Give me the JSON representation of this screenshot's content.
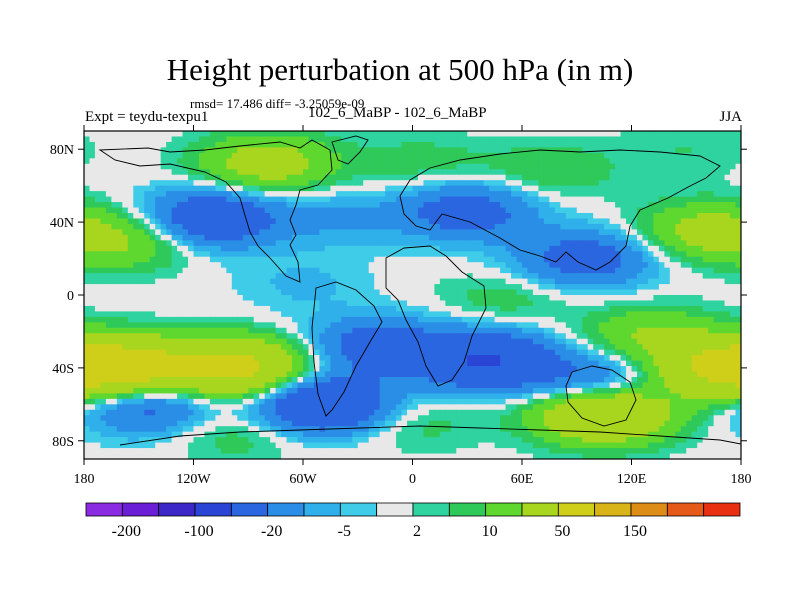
{
  "header": {
    "title": "Height perturbation at 500 hPa (in m)",
    "stats": "rmsd= 17.486  diff= -3.25059e-09",
    "experiment": "Expt = teydu-texpu1",
    "experiment_name": "102_6_MaBP - 102_6_MaBP",
    "season": "JJA"
  },
  "colors": {
    "levels": [
      "#8a2be2",
      "#6a1fd6",
      "#3c28c8",
      "#2a45d6",
      "#2a66e0",
      "#2a8ee6",
      "#2fb0ea",
      "#3fcce8",
      "#e8e8e8",
      "#2ed3a0",
      "#2fc95a",
      "#5ed82e",
      "#a8d61e",
      "#cfcf1a",
      "#d9b418",
      "#dd8c16",
      "#e55a18",
      "#e83010"
    ]
  },
  "chart_data": {
    "type": "heatmap",
    "title": "Height perturbation at 500 hPa (in m)",
    "xlabel": "",
    "ylabel": "",
    "xlim": [
      -180,
      180
    ],
    "ylim": [
      -90,
      90
    ],
    "x_ticks": [
      {
        "value": -180,
        "label": "180"
      },
      {
        "value": -120,
        "label": "120W"
      },
      {
        "value": -60,
        "label": "60W"
      },
      {
        "value": 0,
        "label": "0"
      },
      {
        "value": 60,
        "label": "60E"
      },
      {
        "value": 120,
        "label": "120E"
      },
      {
        "value": 180,
        "label": "180"
      }
    ],
    "y_ticks": [
      {
        "value": 80,
        "label": "80N"
      },
      {
        "value": 40,
        "label": "40N"
      },
      {
        "value": 0,
        "label": "0"
      },
      {
        "value": -40,
        "label": "40S"
      },
      {
        "value": -80,
        "label": "80S"
      }
    ],
    "colorbar_labels": [
      "-200",
      "-100",
      "-20",
      "-5",
      "2",
      "10",
      "50",
      "150"
    ],
    "colorbar_bins": 18,
    "value_unit": "m",
    "field_anomalies": [
      {
        "lon": -155,
        "lat": 30,
        "value": 20
      },
      {
        "lon": 160,
        "lat": 35,
        "value": 25
      },
      {
        "lon": -80,
        "lat": 72,
        "value": 30
      },
      {
        "lon": 5,
        "lat": 72,
        "value": 8
      },
      {
        "lon": 75,
        "lat": 68,
        "value": 10
      },
      {
        "lon": 150,
        "lat": 80,
        "value": 5
      },
      {
        "lon": -110,
        "lat": 42,
        "value": -40
      },
      {
        "lon": -40,
        "lat": 42,
        "value": -10
      },
      {
        "lon": 30,
        "lat": 46,
        "value": -30
      },
      {
        "lon": 95,
        "lat": 20,
        "value": -30
      },
      {
        "lon": -60,
        "lat": 6,
        "value": -6
      },
      {
        "lon": 50,
        "lat": -2,
        "value": 8
      },
      {
        "lon": 130,
        "lat": -22,
        "value": 20
      },
      {
        "lon": -155,
        "lat": -40,
        "value": 60
      },
      {
        "lon": -95,
        "lat": -40,
        "value": 60
      },
      {
        "lon": 170,
        "lat": -40,
        "value": 50
      },
      {
        "lon": -20,
        "lat": -28,
        "value": -30
      },
      {
        "lon": 40,
        "lat": -36,
        "value": -50
      },
      {
        "lon": 100,
        "lat": -48,
        "value": -25
      },
      {
        "lon": -145,
        "lat": -60,
        "value": -30
      },
      {
        "lon": -50,
        "lat": -60,
        "value": -50
      },
      {
        "lon": 105,
        "lat": -65,
        "value": 55
      },
      {
        "lon": -95,
        "lat": -75,
        "value": 10
      },
      {
        "lon": 0,
        "lat": -70,
        "value": 8
      }
    ]
  }
}
